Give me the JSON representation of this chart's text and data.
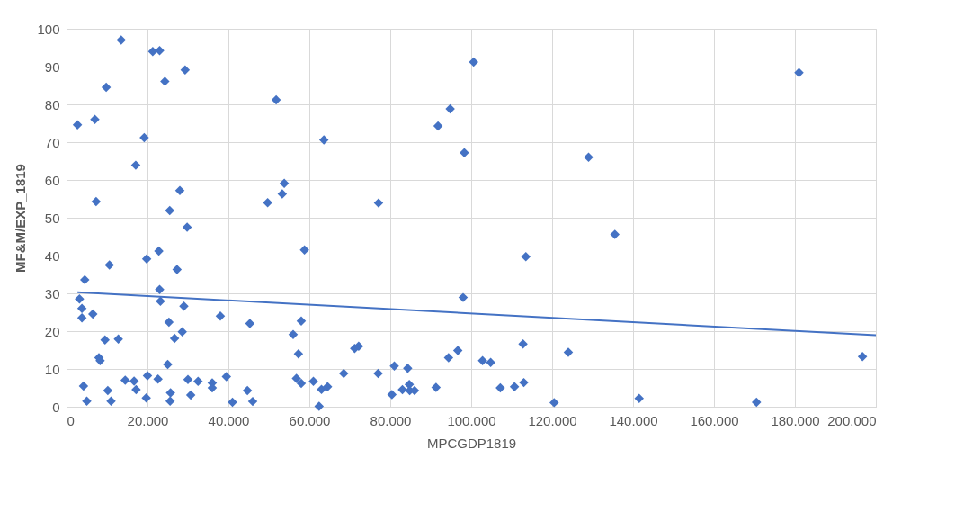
{
  "chart_data": {
    "type": "scatter",
    "xlabel": "MPCGDP1819",
    "ylabel": "MF&M/EXP_1819",
    "xlim": [
      0,
      200000
    ],
    "ylim": [
      0,
      100
    ],
    "xticks": [
      {
        "value": 0,
        "label": "0"
      },
      {
        "value": 20000,
        "label": "20.000"
      },
      {
        "value": 40000,
        "label": "40.000"
      },
      {
        "value": 60000,
        "label": "60.000"
      },
      {
        "value": 80000,
        "label": "80.000"
      },
      {
        "value": 100000,
        "label": "100.000"
      },
      {
        "value": 120000,
        "label": "120.000"
      },
      {
        "value": 140000,
        "label": "140.000"
      },
      {
        "value": 160000,
        "label": "160.000"
      },
      {
        "value": 180000,
        "label": "180.000"
      },
      {
        "value": 200000,
        "label": "200.000"
      }
    ],
    "yticks": [
      0,
      10,
      20,
      30,
      40,
      50,
      60,
      70,
      80,
      90,
      100
    ],
    "grid": true,
    "marker": "diamond",
    "series": [
      {
        "color": "#4472c4",
        "x": [
          2700,
          3200,
          3800,
          3800,
          4200,
          4500,
          5000,
          6500,
          7000,
          7300,
          8000,
          8300,
          9500,
          9800,
          10200,
          10600,
          11000,
          12800,
          13500,
          14500,
          16700,
          17100,
          17200,
          19200,
          19700,
          19800,
          20000,
          21300,
          22600,
          22800,
          23000,
          23000,
          23200,
          24300,
          25000,
          25300,
          25500,
          25600,
          25700,
          26700,
          27300,
          28000,
          28600,
          29000,
          29300,
          29800,
          30000,
          30700,
          32500,
          36000,
          36000,
          38000,
          39500,
          41000,
          44700,
          45300,
          46000,
          49700,
          51800,
          53300,
          53800,
          56000,
          56800,
          57300,
          58000,
          58000,
          58800,
          61000,
          62400,
          63000,
          63600,
          64500,
          68500,
          71200,
          72200,
          77100,
          77000,
          80400,
          81000,
          83000,
          84300,
          84700,
          84800,
          86000,
          91300,
          91800,
          94400,
          94800,
          96700,
          98000,
          98300,
          100600,
          102800,
          104800,
          107200,
          110700,
          112800,
          113000,
          113500,
          120500,
          124000,
          129000,
          135500,
          141500,
          170500,
          181000,
          196700
        ],
        "values": [
          74.6,
          28.5,
          26,
          23.5,
          5.5,
          33.6,
          1.5,
          24.5,
          76,
          54.3,
          13,
          12.2,
          17.7,
          84.5,
          4.3,
          37.5,
          1.5,
          17.9,
          97,
          7,
          6.8,
          63.9,
          4.5,
          71.2,
          2.3,
          39.1,
          8.2,
          94,
          7.3,
          41.2,
          94.2,
          31,
          27.9,
          86.1,
          11.2,
          22.4,
          51.9,
          1.5,
          3.7,
          18.1,
          36.3,
          57.2,
          19.8,
          26.6,
          89.1,
          47.5,
          7.2,
          3.1,
          6.7,
          6.3,
          5,
          24,
          8,
          1.2,
          4.3,
          22,
          1.4,
          54,
          81.2,
          56.3,
          59.1,
          19.1,
          7.5,
          14,
          22.7,
          6.2,
          41.5,
          6.7,
          0.1,
          4.6,
          70.6,
          5.3,
          8.8,
          15.4,
          16,
          53.9,
          8.8,
          3.2,
          10.8,
          4.5,
          10.2,
          5.9,
          4.3,
          4.3,
          5.1,
          74.3,
          13,
          78.8,
          14.9,
          28.9,
          67.2,
          91.2,
          12.2,
          11.7,
          5,
          5.3,
          16.6,
          6.4,
          39.7,
          1.1,
          14.4,
          66,
          45.6,
          2.2,
          1.2,
          88.4,
          13.3
        ]
      },
      {
        "type": "line",
        "color": "#4472c4",
        "marker": "none",
        "line_style": "solid",
        "x": [
          2700,
          200000
        ],
        "values": [
          30.3,
          18.9
        ]
      }
    ]
  }
}
